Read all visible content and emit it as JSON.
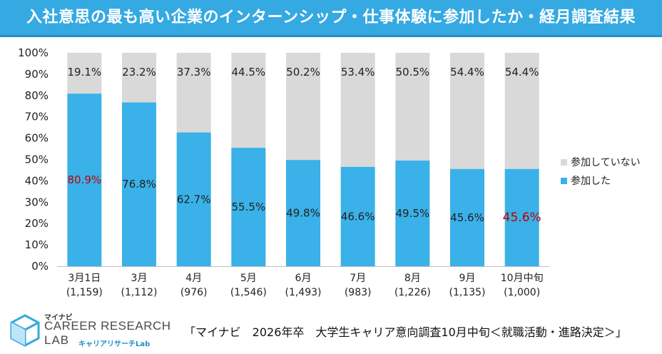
{
  "title": "入社意思の最も高い企業のインターンシップ・仕事体験に参加したか・経月調査結果",
  "chart_data": {
    "type": "bar",
    "stacked": true,
    "categories": [
      "3月1日",
      "3月",
      "4月",
      "5月",
      "6月",
      "7月",
      "8月",
      "9月",
      "10月中旬"
    ],
    "sample_sizes": [
      "(1,159)",
      "(1,112)",
      "(976)",
      "(1,546)",
      "(1,493)",
      "(983)",
      "(1,226)",
      "(1,135)",
      "(1,000)"
    ],
    "series": [
      {
        "name": "参加した",
        "color": "#3ab1e8",
        "values": [
          80.9,
          76.8,
          62.7,
          55.5,
          49.8,
          46.6,
          49.5,
          45.6,
          45.6
        ],
        "labels": [
          "80.9%",
          "76.8%",
          "62.7%",
          "55.5%",
          "49.8%",
          "46.6%",
          "49.5%",
          "45.6%",
          "45.6%"
        ]
      },
      {
        "name": "参加していない",
        "color": "#d9d9d9",
        "values": [
          19.1,
          23.2,
          37.3,
          44.5,
          50.2,
          53.4,
          50.5,
          54.4,
          54.4
        ],
        "labels": [
          "19.1%",
          "23.2%",
          "37.3%",
          "44.5%",
          "50.2%",
          "53.4%",
          "50.5%",
          "54.4%",
          "54.4%"
        ]
      }
    ],
    "highlight": [
      {
        "series": 0,
        "index": 0,
        "color": "#c00000"
      },
      {
        "series": 0,
        "index": 8,
        "color": "#c00000"
      }
    ],
    "ylim": [
      0,
      100
    ],
    "yticks": [
      0,
      10,
      20,
      30,
      40,
      50,
      60,
      70,
      80,
      90,
      100
    ],
    "ytick_labels": [
      "0%",
      "10%",
      "20%",
      "30%",
      "40%",
      "50%",
      "60%",
      "70%",
      "80%",
      "90%",
      "100%"
    ],
    "legend": [
      "参加していない",
      "参加した"
    ],
    "legend_position": "right"
  },
  "logo": {
    "brand": "マイナビ",
    "line1": "CAREER RESEARCH",
    "line2": "LAB",
    "sub": "キャリアリサーチLab"
  },
  "source": "「マイナビ　2026年卒　大学生キャリア意向調査10月中旬＜就職活動・進路決定＞」"
}
